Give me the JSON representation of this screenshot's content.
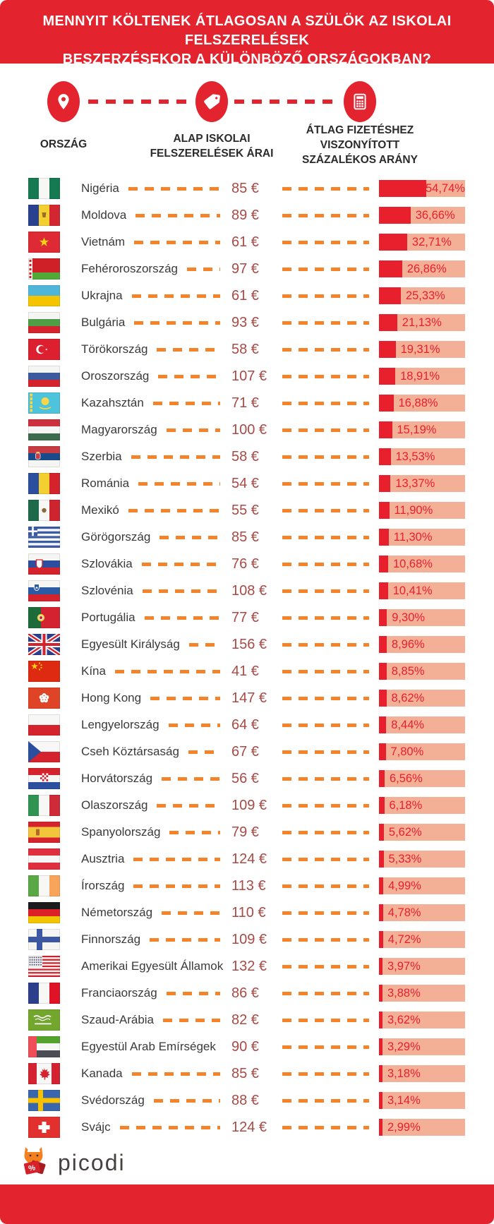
{
  "colors": {
    "header_red": "#e3232d",
    "fill_red": "#e8202e",
    "peach": "#f4b097",
    "orange": "#f5832a",
    "price_red": "#a84a45"
  },
  "header": {
    "title_line1": "MENNYIT KÖLTENEK ÁTLAGOSAN A SZÜLÖK AZ ISKOLAI FELSZERELÉSEK",
    "title_line2": "BESZERZÉSEKOR A KÜLÖNBÖZŐ ORSZÁGOKBAN?"
  },
  "columns": {
    "country": {
      "icon": "location-pin-icon",
      "label": "ORSZÁG"
    },
    "price": {
      "icon": "price-tag-icon",
      "label_line1": "ALAP ISKOLAI",
      "label_line2": "FELSZERELÉSEK ÁRAI"
    },
    "percent": {
      "icon": "calculator-icon",
      "label_line1": "ÁTLAG FIZETÉSHEZ",
      "label_line2": "VISZONYÍTOTT",
      "label_line3": "SZÁZALÉKOS ARÁNY"
    }
  },
  "chart_data": {
    "type": "bar",
    "title": "Mennyit költenek átlagosan a szülök az iskolai felszerelések beszerzésekor a különböző országokban?",
    "value_unit": "%",
    "price_unit": "€",
    "bar_scale_max": 100,
    "rows": [
      {
        "country": "Nigéria",
        "flag": "ng",
        "price": "85 €",
        "price_eur": 85,
        "percent": 54.74,
        "percent_label": "54,74%"
      },
      {
        "country": "Moldova",
        "flag": "md",
        "price": "89 €",
        "price_eur": 89,
        "percent": 36.66,
        "percent_label": "36,66%"
      },
      {
        "country": "Vietnám",
        "flag": "vn",
        "price": "61 €",
        "price_eur": 61,
        "percent": 32.71,
        "percent_label": "32,71%"
      },
      {
        "country": "Fehéroroszország",
        "flag": "by",
        "price": "97 €",
        "price_eur": 97,
        "percent": 26.86,
        "percent_label": "26,86%"
      },
      {
        "country": "Ukrajna",
        "flag": "ua",
        "price": "61 €",
        "price_eur": 61,
        "percent": 25.33,
        "percent_label": "25,33%"
      },
      {
        "country": "Bulgária",
        "flag": "bg",
        "price": "93 €",
        "price_eur": 93,
        "percent": 21.13,
        "percent_label": "21,13%"
      },
      {
        "country": "Törökország",
        "flag": "tr",
        "price": "58 €",
        "price_eur": 58,
        "percent": 19.31,
        "percent_label": "19,31%"
      },
      {
        "country": "Oroszország",
        "flag": "ru",
        "price": "107 €",
        "price_eur": 107,
        "percent": 18.91,
        "percent_label": "18,91%"
      },
      {
        "country": "Kazahsztán",
        "flag": "kz",
        "price": "71 €",
        "price_eur": 71,
        "percent": 16.88,
        "percent_label": "16,88%"
      },
      {
        "country": "Magyarország",
        "flag": "hu",
        "price": "100 €",
        "price_eur": 100,
        "percent": 15.19,
        "percent_label": "15,19%"
      },
      {
        "country": "Szerbia",
        "flag": "rs",
        "price": "58 €",
        "price_eur": 58,
        "percent": 13.53,
        "percent_label": "13,53%"
      },
      {
        "country": "Románia",
        "flag": "ro",
        "price": "54 €",
        "price_eur": 54,
        "percent": 13.37,
        "percent_label": "13,37%"
      },
      {
        "country": "Mexikó",
        "flag": "mx",
        "price": "55 €",
        "price_eur": 55,
        "percent": 11.9,
        "percent_label": "11,90%"
      },
      {
        "country": "Görögország",
        "flag": "gr",
        "price": "85 €",
        "price_eur": 85,
        "percent": 11.3,
        "percent_label": "11,30%"
      },
      {
        "country": "Szlovákia",
        "flag": "sk",
        "price": "76 €",
        "price_eur": 76,
        "percent": 10.68,
        "percent_label": "10,68%"
      },
      {
        "country": "Szlovénia",
        "flag": "si",
        "price": "108 €",
        "price_eur": 108,
        "percent": 10.41,
        "percent_label": "10,41%"
      },
      {
        "country": "Portugália",
        "flag": "pt",
        "price": "77 €",
        "price_eur": 77,
        "percent": 9.3,
        "percent_label": "9,30%"
      },
      {
        "country": "Egyesült Királyság",
        "flag": "gb",
        "price": "156 €",
        "price_eur": 156,
        "percent": 8.96,
        "percent_label": "8,96%"
      },
      {
        "country": "Kína",
        "flag": "cn",
        "price": "41 €",
        "price_eur": 41,
        "percent": 8.85,
        "percent_label": "8,85%"
      },
      {
        "country": "Hong Kong",
        "flag": "hk",
        "price": "147 €",
        "price_eur": 147,
        "percent": 8.62,
        "percent_label": "8,62%"
      },
      {
        "country": "Lengyelország",
        "flag": "pl",
        "price": "64 €",
        "price_eur": 64,
        "percent": 8.44,
        "percent_label": "8,44%"
      },
      {
        "country": "Cseh Köztársaság",
        "flag": "cz",
        "price": "67 €",
        "price_eur": 67,
        "percent": 7.8,
        "percent_label": "7,80%"
      },
      {
        "country": "Horvátország",
        "flag": "hr",
        "price": "56 €",
        "price_eur": 56,
        "percent": 6.56,
        "percent_label": "6,56%"
      },
      {
        "country": "Olaszország",
        "flag": "it",
        "price": "109 €",
        "price_eur": 109,
        "percent": 6.18,
        "percent_label": "6,18%"
      },
      {
        "country": "Spanyolország",
        "flag": "es",
        "price": "79 €",
        "price_eur": 79,
        "percent": 5.62,
        "percent_label": "5,62%"
      },
      {
        "country": "Ausztria",
        "flag": "at",
        "price": "124 €",
        "price_eur": 124,
        "percent": 5.33,
        "percent_label": "5,33%"
      },
      {
        "country": "Írország",
        "flag": "ie",
        "price": "113 €",
        "price_eur": 113,
        "percent": 4.99,
        "percent_label": "4,99%"
      },
      {
        "country": "Németország",
        "flag": "de",
        "price": "110 €",
        "price_eur": 110,
        "percent": 4.78,
        "percent_label": "4,78%"
      },
      {
        "country": "Finnország",
        "flag": "fi",
        "price": "109 €",
        "price_eur": 109,
        "percent": 4.72,
        "percent_label": "4,72%"
      },
      {
        "country": "Amerikai Egyesült Államok",
        "flag": "us",
        "price": "132 €",
        "price_eur": 132,
        "percent": 3.97,
        "percent_label": "3,97%"
      },
      {
        "country": "Franciaország",
        "flag": "fr",
        "price": "86 €",
        "price_eur": 86,
        "percent": 3.88,
        "percent_label": "3,88%"
      },
      {
        "country": "Szaud-Arábia",
        "flag": "sa",
        "price": "82 €",
        "price_eur": 82,
        "percent": 3.62,
        "percent_label": "3,62%"
      },
      {
        "country": "Egyestül Arab Emírségek",
        "flag": "ae",
        "price": "90 €",
        "price_eur": 90,
        "percent": 3.29,
        "percent_label": "3,29%"
      },
      {
        "country": "Kanada",
        "flag": "ca",
        "price": "85 €",
        "price_eur": 85,
        "percent": 3.18,
        "percent_label": "3,18%"
      },
      {
        "country": "Svédország",
        "flag": "se",
        "price": "88 €",
        "price_eur": 88,
        "percent": 3.14,
        "percent_label": "3,14%"
      },
      {
        "country": "Svájc",
        "flag": "ch",
        "price": "124 €",
        "price_eur": 124,
        "percent": 2.99,
        "percent_label": "2,99%"
      }
    ]
  },
  "footer": {
    "logo_text": "picodi"
  }
}
